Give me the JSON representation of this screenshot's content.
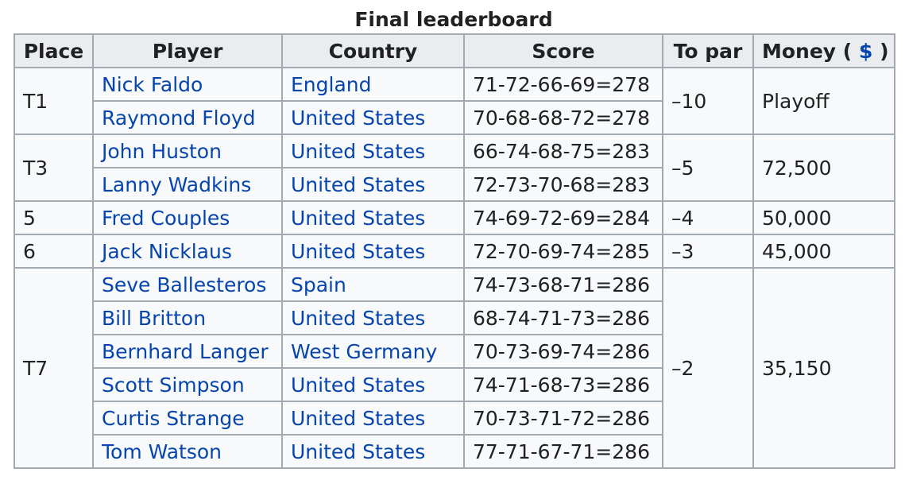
{
  "caption": "Final leaderboard",
  "headers": {
    "place": "Place",
    "player": "Player",
    "country": "Country",
    "score": "Score",
    "to_par": "To par",
    "money_prefix": "Money (",
    "money_symbol": "$",
    "money_suffix": ")"
  },
  "groups": [
    {
      "place": "T1",
      "to_par": "–10",
      "money": "Playoff",
      "rows": [
        {
          "player": "Nick Faldo",
          "country": "England",
          "score": "71-72-66-69=278"
        },
        {
          "player": "Raymond Floyd",
          "country": "United States",
          "score": "70-68-68-72=278"
        }
      ]
    },
    {
      "place": "T3",
      "to_par": "–5",
      "money": "72,500",
      "rows": [
        {
          "player": "John Huston",
          "country": "United States",
          "score": "66-74-68-75=283"
        },
        {
          "player": "Lanny Wadkins",
          "country": "United States",
          "score": "72-73-70-68=283"
        }
      ]
    },
    {
      "place": "5",
      "to_par": "–4",
      "money": "50,000",
      "rows": [
        {
          "player": "Fred Couples",
          "country": "United States",
          "score": "74-69-72-69=284"
        }
      ]
    },
    {
      "place": "6",
      "to_par": "–3",
      "money": "45,000",
      "rows": [
        {
          "player": "Jack Nicklaus",
          "country": "United States",
          "score": "72-70-69-74=285"
        }
      ]
    },
    {
      "place": "T7",
      "to_par": "–2",
      "money": "35,150",
      "rows": [
        {
          "player": "Seve Ballesteros",
          "country": "Spain",
          "score": "74-73-68-71=286"
        },
        {
          "player": "Bill Britton",
          "country": "United States",
          "score": "68-74-71-73=286"
        },
        {
          "player": "Bernhard Langer",
          "country": "West Germany",
          "score": "70-73-69-74=286"
        },
        {
          "player": "Scott Simpson",
          "country": "United States",
          "score": "74-71-68-73=286"
        },
        {
          "player": "Curtis Strange",
          "country": "United States",
          "score": "70-73-71-72=286"
        },
        {
          "player": "Tom Watson",
          "country": "United States",
          "score": "77-71-67-71=286"
        }
      ]
    }
  ]
}
